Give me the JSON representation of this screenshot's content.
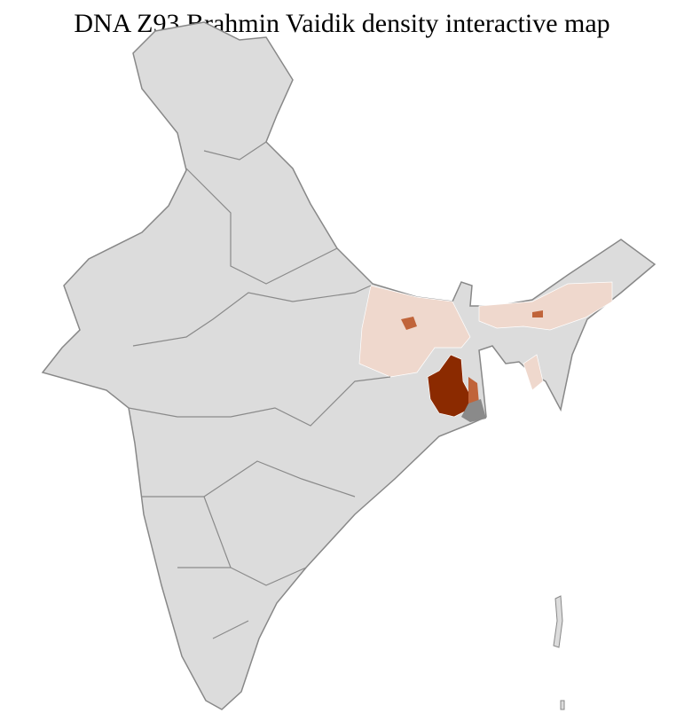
{
  "title": "DNA Z93 Brahmin Vaidik density interactive map",
  "legend_colors": {
    "no_data": "#dcdcdc",
    "low": "#efd8cd",
    "medium": "#c0643a",
    "high": "#8b2a00",
    "masked": "#8a8a8a"
  }
}
